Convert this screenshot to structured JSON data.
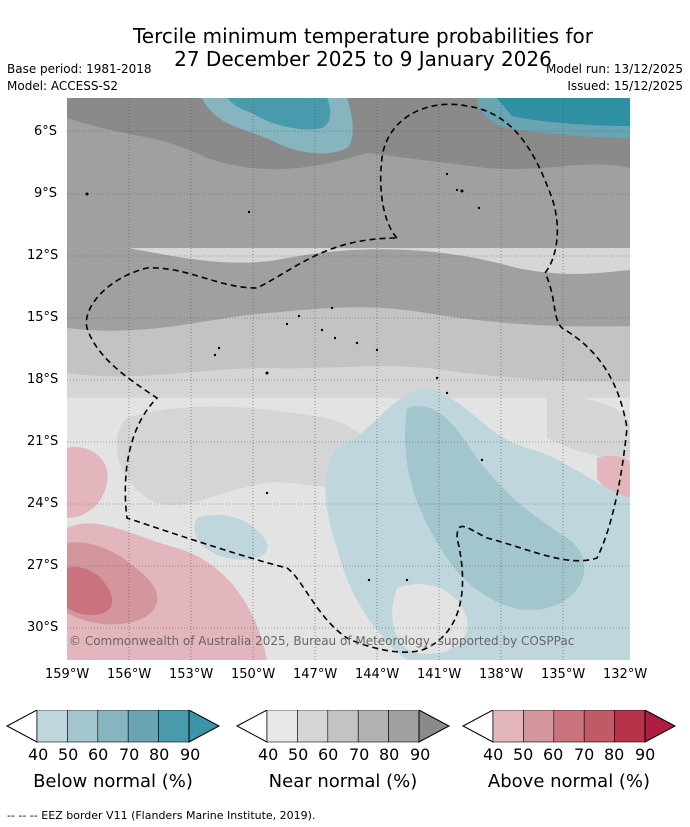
{
  "title_line1": "Tercile minimum temperature probabilities for",
  "title_line2": "27 December 2025 to 9 January 2026",
  "base_period": "Base period: 1981-2018",
  "model": "Model: ACCESS-S2",
  "model_run": "Model run: 13/12/2025",
  "issued": "Issued: 15/12/2025",
  "copyright": "© Commonwealth of Australia 2025, Bureau of Meteorology, supported by COSPPac",
  "footer": "--  --  -- EEZ border V11 (Flanders Marine Institute, 2019).",
  "lat_ticks": [
    "6°S",
    "9°S",
    "12°S",
    "15°S",
    "18°S",
    "21°S",
    "24°S",
    "27°S",
    "30°S"
  ],
  "lon_ticks": [
    "159°W",
    "156°W",
    "153°W",
    "150°W",
    "147°W",
    "144°W",
    "141°W",
    "138°W",
    "135°W",
    "132°W"
  ],
  "colorbars": [
    {
      "title": "Below normal (%)",
      "labels": [
        "40",
        "50",
        "60",
        "70",
        "80",
        "90"
      ],
      "colors": [
        "#bfd6dd",
        "#a3c6ce",
        "#86b5c0",
        "#69a4b2",
        "#4a9aad"
      ]
    },
    {
      "title": "Near normal (%)",
      "labels": [
        "40",
        "50",
        "60",
        "70",
        "80",
        "90"
      ],
      "colors": [
        "#e8e8e8",
        "#d5d5d5",
        "#c3c3c3",
        "#b1b1b1",
        "#a0a0a0"
      ]
    },
    {
      "title": "Above normal (%)",
      "labels": [
        "40",
        "50",
        "60",
        "70",
        "80",
        "90"
      ],
      "colors": [
        "#e2b6bc",
        "#d4969d",
        "#c9747d",
        "#c05a66",
        "#b8324a"
      ]
    }
  ],
  "colors": {
    "cb_left_end": "#ffffff",
    "below_end": "#3a95a8",
    "near_end": "#8a8a8a",
    "above_end": "#b01c42",
    "grey_dark": "#8a8a8a",
    "teal_dark": "#2f8fa3"
  }
}
